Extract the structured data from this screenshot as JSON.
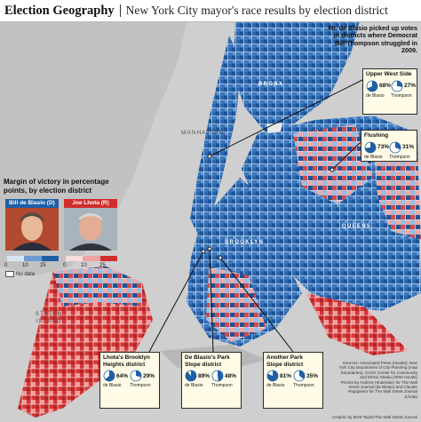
{
  "header": {
    "title": "Election Geography",
    "subtitle": "New York City mayor's race results by election district"
  },
  "borough_labels": {
    "bronx": "BRONX",
    "manhattan": "MANHATTAN",
    "brooklyn": "BROOKLYN",
    "queens": "QUEENS",
    "staten_island": "STATEN ISLAND"
  },
  "legend": {
    "title": "Margin of victory in percentage points, by election district",
    "candidates": [
      {
        "name": "Bill de Blasio (D)",
        "party": "D",
        "color": "#1f5fa6",
        "photo_bg": "#c95a3b"
      },
      {
        "name": "Joe Lhota (R)",
        "party": "R",
        "color": "#d02d2d",
        "photo_bg": "#a8b3bd"
      }
    ],
    "scale_ticks_dem": [
      "0",
      "10",
      "25"
    ],
    "scale_ticks_rep": [
      "0",
      "10",
      "25"
    ],
    "no_data_label": "No data"
  },
  "note": "Mr. de Blasio picked up votes in districts where Democrat Bill Thompson struggled in 2009.",
  "callouts": [
    {
      "title": "Upper West Side",
      "deblasio_pct": 68,
      "thompson_pct": 27,
      "deblasio_label": "68%",
      "thompson_label": "27%",
      "cap1": "de Blasio",
      "cap2": "Thompson"
    },
    {
      "title": "Flushing",
      "deblasio_pct": 73,
      "thompson_pct": 31,
      "deblasio_label": "73%",
      "thompson_label": "31%",
      "cap1": "de Blasio",
      "cap2": "Thompson"
    },
    {
      "title": "Lhota's Brooklyn Heights district",
      "deblasio_pct": 64,
      "thompson_pct": 29,
      "deblasio_label": "64%",
      "thompson_label": "29%",
      "cap1": "de Blasio",
      "cap2": "Thompson"
    },
    {
      "title": "De Blasio's Park Slope district",
      "deblasio_pct": 89,
      "thompson_pct": 48,
      "deblasio_label": "89%",
      "thompson_label": "48%",
      "cap1": "de Blasio",
      "cap2": "Thompson"
    },
    {
      "title": "Another Park Slope district",
      "deblasio_pct": 81,
      "thompson_pct": 35,
      "deblasio_label": "81%",
      "thompson_label": "35%",
      "cap1": "de Blasio",
      "cap2": "Thompson"
    }
  ],
  "credits": "Sources: Associated Press (results); New York City Department of City Planning (map boundaries); CUNY Center for Community and Ethnic Media (2009 results)\nPhotos by Andrew Hinderaker for The Wall Street Journal (de Blasio) and Claudio Papapietro for The Wall Street Journal (Lhota)",
  "graphic_credit": "Graphic by Brett Taylor/The Wall Street Journal",
  "colors": {
    "dem": "#1f5fa6",
    "dem_light": "#9cbde0",
    "rep": "#d02d2d",
    "rep_light": "#eea3a3",
    "water": "#cfcfcf",
    "land": "#e9e9e9"
  }
}
